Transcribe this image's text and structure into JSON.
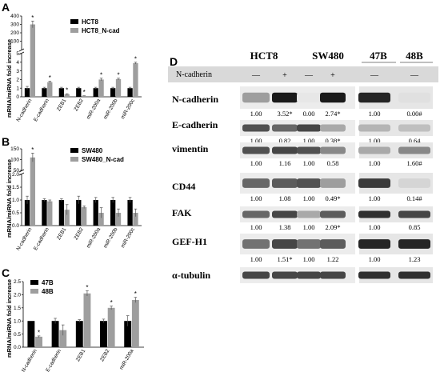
{
  "panels": {
    "A": "A",
    "B": "B",
    "C": "C",
    "D": "D"
  },
  "y_axis_label": "mRNA/miRNA fold increase",
  "chart_data": [
    {
      "panel": "A",
      "type": "bar",
      "categories": [
        "N-cadherin",
        "E-cadherin",
        "ZEB1",
        "ZEB2",
        "miR-200a",
        "miR-200b",
        "miR-200c"
      ],
      "series": [
        {
          "name": "HCT8",
          "values": [
            1.0,
            1.0,
            1.0,
            1.0,
            1.0,
            1.0,
            1.0
          ],
          "errors": [
            0.2,
            0.1,
            0.1,
            0.1,
            0.1,
            0.1,
            0.1
          ],
          "color": "#000000"
        },
        {
          "name": "HCT8_N-cad",
          "values": [
            300,
            1.7,
            0.3,
            0.1,
            2.0,
            2.05,
            3.9
          ],
          "errors": [
            40,
            0.1,
            0.05,
            0.02,
            0.15,
            0.1,
            0.1
          ],
          "color": "#9e9e9e"
        }
      ],
      "significant": [
        [
          false,
          true
        ],
        [
          false,
          true
        ],
        [
          false,
          true
        ],
        [
          false,
          true
        ],
        [
          false,
          true
        ],
        [
          false,
          true
        ],
        [
          false,
          true
        ]
      ],
      "ylim_lower": [
        0,
        5
      ],
      "ylim_upper": [
        5,
        400
      ],
      "yticks_lower": [
        "0",
        "1",
        "2",
        "3",
        "4",
        "5"
      ],
      "yticks_upper": [
        "100",
        "200",
        "300",
        "400"
      ]
    },
    {
      "panel": "B",
      "type": "bar",
      "categories": [
        "N-cadherin",
        "E-cadherin",
        "ZEB1",
        "ZEB2",
        "miR-200a",
        "miR-200b",
        "miR-200c"
      ],
      "series": [
        {
          "name": "SW480",
          "values": [
            1.0,
            1.0,
            1.0,
            1.0,
            1.0,
            1.0,
            1.0
          ],
          "errors": [
            0.15,
            0.05,
            0.05,
            0.15,
            0.1,
            0.1,
            0.1
          ],
          "color": "#000000"
        },
        {
          "name": "SW480_N-cad",
          "values": [
            110,
            0.95,
            0.62,
            0.72,
            0.5,
            0.5,
            0.5
          ],
          "errors": [
            20,
            0.05,
            0.2,
            0.05,
            0.2,
            0.15,
            0.15
          ],
          "color": "#9e9e9e"
        }
      ],
      "significant": [
        [
          false,
          true
        ],
        [
          false,
          false
        ],
        [
          false,
          false
        ],
        [
          false,
          false
        ],
        [
          false,
          false
        ],
        [
          false,
          false
        ],
        [
          false,
          false
        ]
      ],
      "ylim_lower": [
        0,
        2.0
      ],
      "ylim_upper": [
        50,
        150
      ],
      "yticks_lower": [
        "0.0",
        "0.5",
        "1.0",
        "1.5",
        "2.0"
      ],
      "yticks_upper": [
        "50",
        "100",
        "150"
      ]
    },
    {
      "panel": "C",
      "type": "bar",
      "categories": [
        "N-cadherin",
        "E-cadherin",
        "ZEB1",
        "ZEB2",
        "miR-200a"
      ],
      "series": [
        {
          "name": "47B",
          "values": [
            1.0,
            1.0,
            1.0,
            1.0,
            1.0
          ],
          "errors": [
            0.0,
            0.1,
            0.05,
            0.07,
            0.2
          ],
          "color": "#000000"
        },
        {
          "name": "48B",
          "values": [
            0.4,
            0.65,
            2.05,
            1.5,
            1.8
          ],
          "errors": [
            0.03,
            0.2,
            0.1,
            0.07,
            0.1
          ],
          "color": "#9e9e9e"
        }
      ],
      "significant": [
        [
          false,
          true
        ],
        [
          false,
          false
        ],
        [
          false,
          true
        ],
        [
          false,
          true
        ],
        [
          false,
          true
        ]
      ],
      "ylim": [
        0,
        2.5
      ],
      "yticks": [
        "0.0",
        "0.5",
        "1.0",
        "1.5",
        "2.0",
        "2.5"
      ]
    }
  ],
  "western_blot": {
    "panel": "D",
    "groups": [
      {
        "name": "HCT8"
      },
      {
        "name": "SW480"
      },
      {
        "name": "47B"
      },
      {
        "name": "48B"
      }
    ],
    "n_cadherin_row_label": "N-cadherin",
    "lane_symbols": [
      "—",
      "+",
      "—",
      "+",
      "—",
      "—"
    ],
    "rows": [
      {
        "label": "N-cadherin",
        "values": [
          "1.00",
          "3.52*",
          "0.00",
          "2.74*",
          "1.00",
          "0.00#"
        ],
        "intensity": [
          0.35,
          0.95,
          0.02,
          0.95,
          0.9,
          0.05
        ]
      },
      {
        "label": "E-cadherin",
        "values": [
          "1.00",
          "0.82",
          "1.00",
          "0.38*",
          "1.00",
          "0.64"
        ],
        "intensity": [
          0.7,
          0.6,
          0.75,
          0.3,
          0.25,
          0.2
        ]
      },
      {
        "label": "vimentin",
        "values": [
          "1.00",
          "1.16",
          "1.00",
          "0.58",
          "1.00",
          "1.60#"
        ],
        "intensity": [
          0.7,
          0.75,
          0.7,
          0.45,
          0.3,
          0.45
        ]
      },
      {
        "label": "CD44",
        "values": [
          "1.00",
          "1.08",
          "1.00",
          "0.49*",
          "1.00",
          "0.14#"
        ],
        "intensity": [
          0.6,
          0.65,
          0.7,
          0.35,
          0.8,
          0.1
        ]
      },
      {
        "label": "FAK",
        "values": [
          "1.00",
          "1.38",
          "1.00",
          "2.09*",
          "1.00",
          "0.85"
        ],
        "intensity": [
          0.6,
          0.75,
          0.3,
          0.65,
          0.85,
          0.75
        ]
      },
      {
        "label": "GEF-H1",
        "values": [
          "1.00",
          "1.51*",
          "1.00",
          "1.22",
          "1.00",
          "1.23"
        ],
        "intensity": [
          0.55,
          0.75,
          0.55,
          0.65,
          0.9,
          0.9
        ]
      },
      {
        "label": "α-tubulin",
        "values": [],
        "intensity": [
          0.75,
          0.75,
          0.75,
          0.75,
          0.85,
          0.85
        ]
      }
    ]
  }
}
